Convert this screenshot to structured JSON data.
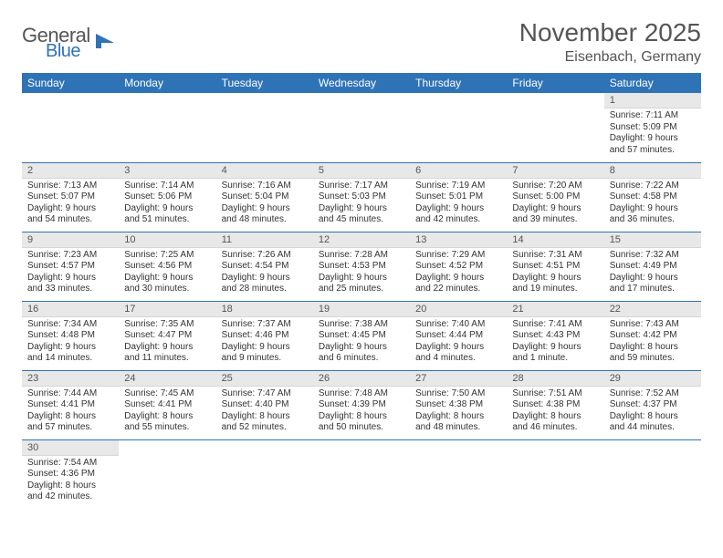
{
  "logo": {
    "text1": "General",
    "text2": "Blue",
    "icon_color": "#2f73b7"
  },
  "title": "November 2025",
  "location": "Eisenbach, Germany",
  "colors": {
    "header_bg": "#2f73b7",
    "header_text": "#ffffff",
    "daynum_bg": "#e8e8e8",
    "border": "#2f73b7",
    "text": "#333333"
  },
  "day_headers": [
    "Sunday",
    "Monday",
    "Tuesday",
    "Wednesday",
    "Thursday",
    "Friday",
    "Saturday"
  ],
  "weeks": [
    [
      null,
      null,
      null,
      null,
      null,
      null,
      {
        "n": "1",
        "sr": "Sunrise: 7:11 AM",
        "ss": "Sunset: 5:09 PM",
        "dl": "Daylight: 9 hours and 57 minutes."
      }
    ],
    [
      {
        "n": "2",
        "sr": "Sunrise: 7:13 AM",
        "ss": "Sunset: 5:07 PM",
        "dl": "Daylight: 9 hours and 54 minutes."
      },
      {
        "n": "3",
        "sr": "Sunrise: 7:14 AM",
        "ss": "Sunset: 5:06 PM",
        "dl": "Daylight: 9 hours and 51 minutes."
      },
      {
        "n": "4",
        "sr": "Sunrise: 7:16 AM",
        "ss": "Sunset: 5:04 PM",
        "dl": "Daylight: 9 hours and 48 minutes."
      },
      {
        "n": "5",
        "sr": "Sunrise: 7:17 AM",
        "ss": "Sunset: 5:03 PM",
        "dl": "Daylight: 9 hours and 45 minutes."
      },
      {
        "n": "6",
        "sr": "Sunrise: 7:19 AM",
        "ss": "Sunset: 5:01 PM",
        "dl": "Daylight: 9 hours and 42 minutes."
      },
      {
        "n": "7",
        "sr": "Sunrise: 7:20 AM",
        "ss": "Sunset: 5:00 PM",
        "dl": "Daylight: 9 hours and 39 minutes."
      },
      {
        "n": "8",
        "sr": "Sunrise: 7:22 AM",
        "ss": "Sunset: 4:58 PM",
        "dl": "Daylight: 9 hours and 36 minutes."
      }
    ],
    [
      {
        "n": "9",
        "sr": "Sunrise: 7:23 AM",
        "ss": "Sunset: 4:57 PM",
        "dl": "Daylight: 9 hours and 33 minutes."
      },
      {
        "n": "10",
        "sr": "Sunrise: 7:25 AM",
        "ss": "Sunset: 4:56 PM",
        "dl": "Daylight: 9 hours and 30 minutes."
      },
      {
        "n": "11",
        "sr": "Sunrise: 7:26 AM",
        "ss": "Sunset: 4:54 PM",
        "dl": "Daylight: 9 hours and 28 minutes."
      },
      {
        "n": "12",
        "sr": "Sunrise: 7:28 AM",
        "ss": "Sunset: 4:53 PM",
        "dl": "Daylight: 9 hours and 25 minutes."
      },
      {
        "n": "13",
        "sr": "Sunrise: 7:29 AM",
        "ss": "Sunset: 4:52 PM",
        "dl": "Daylight: 9 hours and 22 minutes."
      },
      {
        "n": "14",
        "sr": "Sunrise: 7:31 AM",
        "ss": "Sunset: 4:51 PM",
        "dl": "Daylight: 9 hours and 19 minutes."
      },
      {
        "n": "15",
        "sr": "Sunrise: 7:32 AM",
        "ss": "Sunset: 4:49 PM",
        "dl": "Daylight: 9 hours and 17 minutes."
      }
    ],
    [
      {
        "n": "16",
        "sr": "Sunrise: 7:34 AM",
        "ss": "Sunset: 4:48 PM",
        "dl": "Daylight: 9 hours and 14 minutes."
      },
      {
        "n": "17",
        "sr": "Sunrise: 7:35 AM",
        "ss": "Sunset: 4:47 PM",
        "dl": "Daylight: 9 hours and 11 minutes."
      },
      {
        "n": "18",
        "sr": "Sunrise: 7:37 AM",
        "ss": "Sunset: 4:46 PM",
        "dl": "Daylight: 9 hours and 9 minutes."
      },
      {
        "n": "19",
        "sr": "Sunrise: 7:38 AM",
        "ss": "Sunset: 4:45 PM",
        "dl": "Daylight: 9 hours and 6 minutes."
      },
      {
        "n": "20",
        "sr": "Sunrise: 7:40 AM",
        "ss": "Sunset: 4:44 PM",
        "dl": "Daylight: 9 hours and 4 minutes."
      },
      {
        "n": "21",
        "sr": "Sunrise: 7:41 AM",
        "ss": "Sunset: 4:43 PM",
        "dl": "Daylight: 9 hours and 1 minute."
      },
      {
        "n": "22",
        "sr": "Sunrise: 7:43 AM",
        "ss": "Sunset: 4:42 PM",
        "dl": "Daylight: 8 hours and 59 minutes."
      }
    ],
    [
      {
        "n": "23",
        "sr": "Sunrise: 7:44 AM",
        "ss": "Sunset: 4:41 PM",
        "dl": "Daylight: 8 hours and 57 minutes."
      },
      {
        "n": "24",
        "sr": "Sunrise: 7:45 AM",
        "ss": "Sunset: 4:41 PM",
        "dl": "Daylight: 8 hours and 55 minutes."
      },
      {
        "n": "25",
        "sr": "Sunrise: 7:47 AM",
        "ss": "Sunset: 4:40 PM",
        "dl": "Daylight: 8 hours and 52 minutes."
      },
      {
        "n": "26",
        "sr": "Sunrise: 7:48 AM",
        "ss": "Sunset: 4:39 PM",
        "dl": "Daylight: 8 hours and 50 minutes."
      },
      {
        "n": "27",
        "sr": "Sunrise: 7:50 AM",
        "ss": "Sunset: 4:38 PM",
        "dl": "Daylight: 8 hours and 48 minutes."
      },
      {
        "n": "28",
        "sr": "Sunrise: 7:51 AM",
        "ss": "Sunset: 4:38 PM",
        "dl": "Daylight: 8 hours and 46 minutes."
      },
      {
        "n": "29",
        "sr": "Sunrise: 7:52 AM",
        "ss": "Sunset: 4:37 PM",
        "dl": "Daylight: 8 hours and 44 minutes."
      }
    ],
    [
      {
        "n": "30",
        "sr": "Sunrise: 7:54 AM",
        "ss": "Sunset: 4:36 PM",
        "dl": "Daylight: 8 hours and 42 minutes."
      },
      null,
      null,
      null,
      null,
      null,
      null
    ]
  ]
}
